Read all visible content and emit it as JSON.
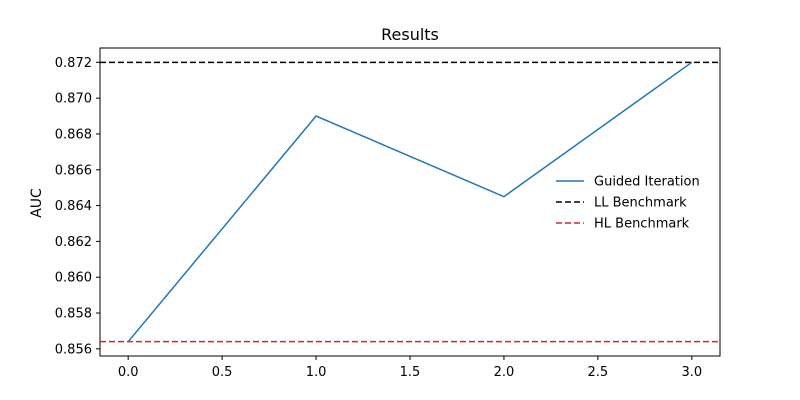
{
  "chart_data": {
    "type": "line",
    "title": "Results",
    "xlabel": "",
    "ylabel": "AUC",
    "xlim": [
      -0.15,
      3.15
    ],
    "ylim": [
      0.8556,
      0.8728
    ],
    "xticks": [
      0.0,
      0.5,
      1.0,
      1.5,
      2.0,
      2.5,
      3.0
    ],
    "xtick_labels": [
      "0.0",
      "0.5",
      "1.0",
      "1.5",
      "2.0",
      "2.5",
      "3.0"
    ],
    "yticks": [
      0.856,
      0.858,
      0.86,
      0.862,
      0.864,
      0.866,
      0.868,
      0.87,
      0.872
    ],
    "ytick_labels": [
      "0.856",
      "0.858",
      "0.860",
      "0.862",
      "0.864",
      "0.866",
      "0.868",
      "0.870",
      "0.872"
    ],
    "grid": false,
    "legend_position": "center-right",
    "series": [
      {
        "name": "Guided Iteration",
        "x": [
          0,
          1,
          2,
          3
        ],
        "values": [
          0.8564,
          0.869,
          0.8645,
          0.872
        ],
        "color": "#1f77b4",
        "style": "solid"
      }
    ],
    "reference_lines": [
      {
        "name": "LL Benchmark",
        "y": 0.872,
        "color": "#000000",
        "style": "dashed"
      },
      {
        "name": "HL Benchmark",
        "y": 0.8564,
        "color": "#d62728",
        "style": "dashed"
      }
    ]
  }
}
